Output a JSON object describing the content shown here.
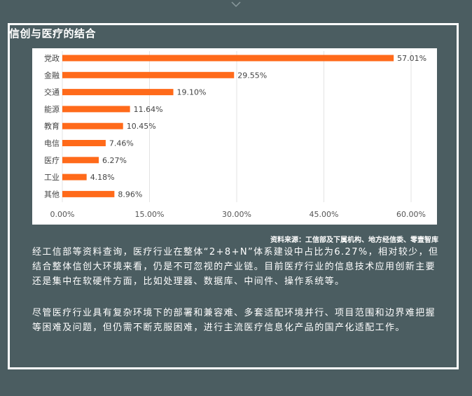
{
  "header": {
    "title": "信创与医疗的结合"
  },
  "chart_data": {
    "type": "bar",
    "orientation": "horizontal",
    "categories": [
      "党政",
      "金融",
      "交通",
      "能源",
      "教育",
      "电信",
      "医疗",
      "工业",
      "其他"
    ],
    "values": [
      57.01,
      29.55,
      19.1,
      11.64,
      10.45,
      7.46,
      6.27,
      4.18,
      8.96
    ],
    "value_labels": [
      "57.01%",
      "29.55%",
      "19.10%",
      "11.64%",
      "10.45%",
      "7.46%",
      "6.27%",
      "4.18%",
      "8.96%"
    ],
    "x_ticks": [
      0,
      15,
      30,
      45,
      60
    ],
    "x_tick_labels": [
      "0.00%",
      "15.00%",
      "30.00%",
      "45.00%",
      "60.00%"
    ],
    "xlim": [
      0,
      60
    ],
    "grid": true,
    "bar_color": "#ff6a1a",
    "title": "",
    "xlabel": "",
    "ylabel": ""
  },
  "source": "资料来源：工信部及下属机构、地方经信委、零壹智库",
  "paragraphs": [
    "经工信部等资料查询，医疗行业在整体“2+8+N”体系建设中占比为6.27%，相对较少，但结合整体信创大环境来看，仍是不可忽视的产业链。目前医疗行业的信息技术应用创新主要还是集中在软硬件方面，比如处理器、数据库、中间件、操作系统等。",
    "尽管医疗行业具有复杂环境下的部署和兼容难、多套适配环境并行、项目范围和边界难把握等困难及问题，但仍需不断克服困难，进行主流医疗信息化产品的国产化适配工作。"
  ]
}
